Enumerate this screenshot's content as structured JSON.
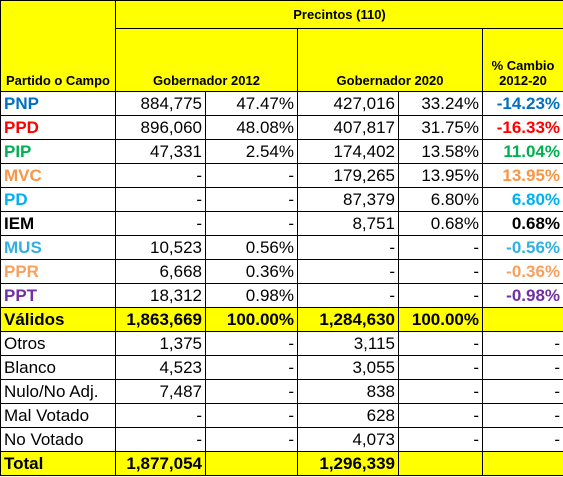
{
  "table": {
    "header": {
      "top": "Precintos (110)",
      "party": "Partido o Campo",
      "gov2012": "Gobernador 2012",
      "gov2020": "Gobernador 2020",
      "change": "% Cambio 2012-20"
    },
    "header_background": "#ffff00",
    "rows": [
      {
        "cells": [
          "PNP",
          "884,775",
          "47.47%",
          "427,016",
          "33.24%",
          "-14.23%"
        ],
        "color": "#0070c0"
      },
      {
        "cells": [
          "PPD",
          "896,060",
          "48.08%",
          "407,817",
          "31.75%",
          "-16.33%"
        ],
        "color": "#ff0000"
      },
      {
        "cells": [
          "PIP",
          "47,331",
          "2.54%",
          "174,402",
          "13.58%",
          "11.04%"
        ],
        "color": "#00b050"
      },
      {
        "cells": [
          "MVC",
          "-",
          "-",
          "179,265",
          "13.95%",
          "13.95%"
        ],
        "color": "#f79646"
      },
      {
        "cells": [
          "PD",
          "-",
          "-",
          "87,379",
          "6.80%",
          "6.80%"
        ],
        "color": "#00b0f0"
      },
      {
        "cells": [
          "IEM",
          "-",
          "-",
          "8,751",
          "0.68%",
          "0.68%"
        ],
        "color": "#000000"
      },
      {
        "cells": [
          "MUS",
          "10,523",
          "0.56%",
          "-",
          "-",
          "-0.56%"
        ],
        "color": "#31b0e0"
      },
      {
        "cells": [
          "PPR",
          "6,668",
          "0.36%",
          "-",
          "-",
          "-0.36%"
        ],
        "color": "#f7a060"
      },
      {
        "cells": [
          "PPT",
          "18,312",
          "0.98%",
          "-",
          "-",
          "-0.98%"
        ],
        "color": "#7030a0"
      },
      {
        "cells": [
          "Válidos",
          "1,863,669",
          "100.00%",
          "1,284,630",
          "100.00%",
          null
        ],
        "background": "#ffff00"
      },
      {
        "cells": [
          "Otros",
          "1,375",
          "-",
          "3,115",
          "-",
          "-"
        ]
      },
      {
        "cells": [
          "Blanco",
          "4,523",
          "-",
          "3,055",
          "-",
          "-"
        ]
      },
      {
        "cells": [
          "Nulo/No Adj.",
          "7,487",
          "-",
          "838",
          "-",
          "-"
        ]
      },
      {
        "cells": [
          "Mal Votado",
          "-",
          "-",
          "628",
          "-",
          "-"
        ]
      },
      {
        "cells": [
          "No Votado",
          "-",
          "-",
          "4,073",
          "-",
          "-"
        ]
      },
      {
        "cells": [
          "Total",
          "1,877,054",
          null,
          "1,296,339",
          null,
          null
        ],
        "background": "#ffff00"
      }
    ]
  }
}
